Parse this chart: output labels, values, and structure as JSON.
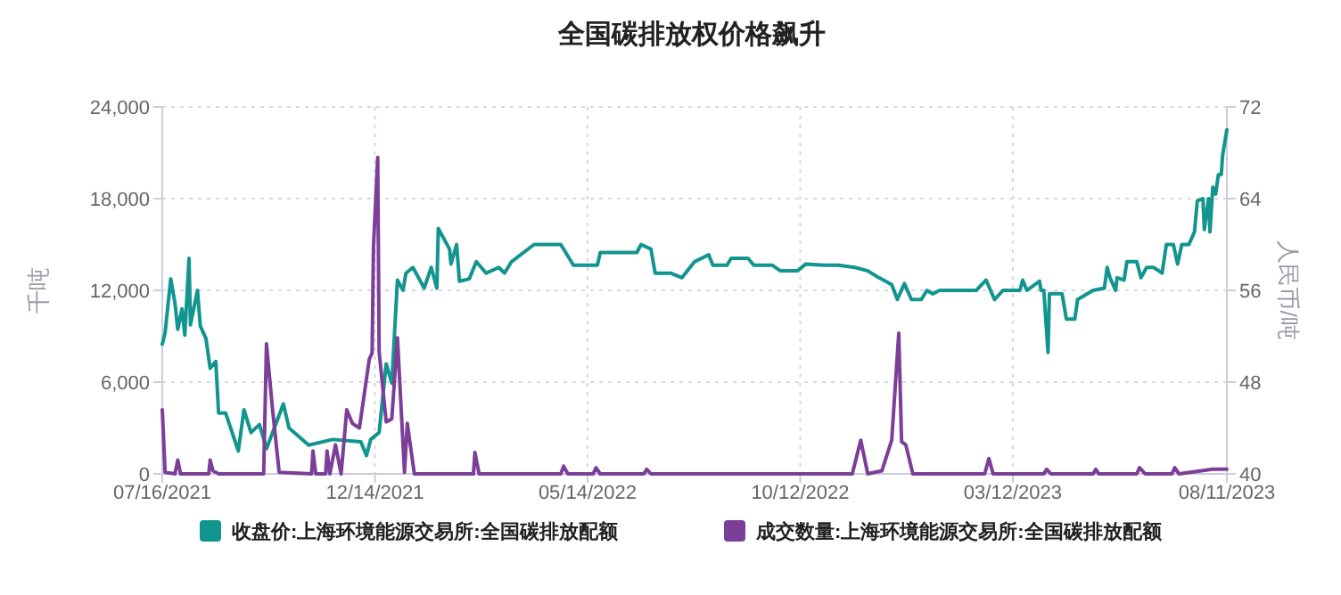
{
  "chart_data": {
    "type": "line",
    "title": "全国碳排放权价格飙升",
    "ylabel": "千吨",
    "y2label": "人民币/吨",
    "xlim": [
      "2021-07-16",
      "2023-08-11"
    ],
    "xticks": [
      {
        "value": "2021-07-16",
        "label": "07/16/2021"
      },
      {
        "value": "2021-12-14",
        "label": "12/14/2021"
      },
      {
        "value": "2022-05-14",
        "label": "05/14/2022"
      },
      {
        "value": "2022-10-12",
        "label": "10/12/2022"
      },
      {
        "value": "2023-03-12",
        "label": "03/12/2023"
      },
      {
        "value": "2023-08-11",
        "label": "08/11/2023"
      }
    ],
    "ylim": [
      0,
      24000
    ],
    "yticks": [
      0,
      {
        "value": 6000,
        "label": "6,000"
      },
      {
        "value": 12000,
        "label": "12,000"
      },
      {
        "value": 18000,
        "label": "18,000"
      },
      {
        "value": 24000,
        "label": "24,000"
      }
    ],
    "y2lim": [
      40,
      72
    ],
    "y2ticks": [
      40,
      48,
      56,
      64,
      72
    ],
    "grid": true,
    "legend": "bottom",
    "series": [
      {
        "name": "收盘价:上海环境能源交易所:全国碳排放配额",
        "color": "#12958f",
        "axis": "y2",
        "x": [
          "2021-07-16",
          "2021-07-18",
          "2021-07-22",
          "2021-07-25",
          "2021-07-27",
          "2021-07-30",
          "2021-08-01",
          "2021-08-04",
          "2021-08-05",
          "2021-08-10",
          "2021-08-12",
          "2021-08-16",
          "2021-08-19",
          "2021-08-23",
          "2021-08-25",
          "2021-08-30",
          "2021-09-08",
          "2021-09-12",
          "2021-09-17",
          "2021-09-23",
          "2021-09-28",
          "2021-10-10",
          "2021-10-14",
          "2021-10-28",
          "2021-11-14",
          "2021-12-04",
          "2021-12-08",
          "2021-12-11",
          "2021-12-17",
          "2021-12-22",
          "2021-12-26",
          "2021-12-30",
          "2022-01-03",
          "2022-01-05",
          "2022-01-10",
          "2022-01-18",
          "2022-01-23",
          "2022-01-27",
          "2022-01-28",
          "2022-02-05",
          "2022-02-06",
          "2022-02-10",
          "2022-02-12",
          "2022-02-19",
          "2022-02-24",
          "2022-03-03",
          "2022-03-12",
          "2022-03-16",
          "2022-03-21",
          "2022-04-06",
          "2022-04-25",
          "2022-05-04",
          "2022-05-21",
          "2022-05-23",
          "2022-06-18",
          "2022-06-21",
          "2022-06-28",
          "2022-07-01",
          "2022-07-12",
          "2022-07-20",
          "2022-07-29",
          "2022-08-08",
          "2022-08-11",
          "2022-08-21",
          "2022-08-24",
          "2022-09-05",
          "2022-09-09",
          "2022-09-22",
          "2022-09-28",
          "2022-10-10",
          "2022-10-16",
          "2022-10-29",
          "2022-11-08",
          "2022-11-20",
          "2022-11-29",
          "2022-12-07",
          "2022-12-16",
          "2022-12-20",
          "2022-12-25",
          "2022-12-30",
          "2023-01-06",
          "2023-01-10",
          "2023-01-14",
          "2023-01-19",
          "2023-02-14",
          "2023-02-21",
          "2023-02-27",
          "2023-03-05",
          "2023-03-17",
          "2023-03-19",
          "2023-03-22",
          "2023-03-31",
          "2023-04-01",
          "2023-04-03",
          "2023-04-06",
          "2023-04-07",
          "2023-04-16",
          "2023-04-19",
          "2023-04-25",
          "2023-04-27",
          "2023-05-08",
          "2023-05-16",
          "2023-05-18",
          "2023-05-20",
          "2023-05-24",
          "2023-05-25",
          "2023-05-30",
          "2023-06-01",
          "2023-06-08",
          "2023-06-11",
          "2023-06-15",
          "2023-06-20",
          "2023-06-26",
          "2023-06-29",
          "2023-07-04",
          "2023-07-07",
          "2023-07-10",
          "2023-07-15",
          "2023-07-19",
          "2023-07-21",
          "2023-07-25",
          "2023-07-26",
          "2023-07-29",
          "2023-07-30",
          "2023-08-01",
          "2023-08-03",
          "2023-08-05",
          "2023-08-07",
          "2023-08-08",
          "2023-08-11"
        ],
        "values": [
          51.3,
          52.3,
          57.0,
          54.9,
          52.6,
          54.4,
          52.1,
          58.8,
          53.0,
          56.0,
          52.9,
          51.8,
          49.2,
          49.8,
          45.3,
          45.3,
          42.0,
          45.6,
          43.6,
          44.3,
          42.2,
          46.1,
          44.0,
          42.5,
          43.0,
          42.8,
          41.6,
          43.0,
          43.6,
          49.6,
          47.9,
          56.9,
          56.0,
          57.5,
          58.0,
          56.2,
          58.0,
          56.2,
          61.4,
          59.6,
          58.3,
          60.0,
          56.8,
          57.0,
          58.5,
          57.5,
          58.0,
          57.5,
          58.5,
          60.0,
          60.0,
          58.2,
          58.2,
          59.3,
          59.3,
          60.0,
          59.6,
          57.5,
          57.5,
          57.1,
          58.5,
          59.1,
          58.2,
          58.2,
          58.8,
          58.8,
          58.2,
          58.2,
          57.7,
          57.7,
          58.3,
          58.2,
          58.2,
          58.0,
          57.7,
          57.1,
          56.5,
          55.2,
          56.6,
          55.2,
          55.2,
          56.0,
          55.7,
          56.0,
          56.0,
          56.9,
          55.2,
          56.0,
          56.0,
          56.9,
          56.0,
          56.8,
          56.0,
          56.0,
          50.6,
          55.7,
          55.7,
          53.5,
          53.5,
          55.2,
          56.0,
          56.2,
          58.0,
          57.1,
          56.0,
          57.1,
          56.9,
          58.5,
          58.5,
          57.1,
          58.0,
          58.0,
          57.5,
          60.0,
          60.0,
          58.3,
          60.0,
          60.0,
          61.1,
          63.8,
          64.0,
          61.3,
          64.0,
          61.1,
          65.0,
          64.4,
          66.1,
          66.1,
          67.8,
          70.0
        ]
      },
      {
        "name": "成交数量:上海环境能源交易所:全国碳排放配额",
        "color": "#7b3f98",
        "x": [
          "2021-07-16",
          "2021-07-18",
          "2021-07-25",
          "2021-07-27",
          "2021-07-29",
          "2021-08-18",
          "2021-08-19",
          "2021-08-21",
          "2021-08-25",
          "2021-09-26",
          "2021-09-28",
          "2021-10-02",
          "2021-10-07",
          "2021-10-30",
          "2021-10-31",
          "2021-11-02",
          "2021-11-09",
          "2021-11-10",
          "2021-11-12",
          "2021-11-16",
          "2021-11-20",
          "2021-11-24",
          "2021-11-28",
          "2021-12-03",
          "2021-12-10",
          "2021-12-12",
          "2021-12-13",
          "2021-12-16",
          "2021-12-17",
          "2021-12-22",
          "2021-12-26",
          "2021-12-30",
          "2022-01-04",
          "2022-01-06",
          "2022-01-11",
          "2022-02-22",
          "2022-02-23",
          "2022-02-26",
          "2022-04-25",
          "2022-04-27",
          "2022-04-30",
          "2022-05-18",
          "2022-05-20",
          "2022-05-23",
          "2022-06-23",
          "2022-06-25",
          "2022-06-28",
          "2022-11-18",
          "2022-11-24",
          "2022-11-29",
          "2022-12-09",
          "2022-12-16",
          "2022-12-21",
          "2022-12-23",
          "2022-12-26",
          "2022-12-31",
          "2023-02-20",
          "2023-02-23",
          "2023-02-26",
          "2023-04-03",
          "2023-04-05",
          "2023-04-08",
          "2023-05-08",
          "2023-05-10",
          "2023-05-12",
          "2023-06-08",
          "2023-06-10",
          "2023-06-14",
          "2023-07-03",
          "2023-07-05",
          "2023-07-08",
          "2023-08-01",
          "2023-08-11"
        ],
        "values": [
          4200,
          100,
          0,
          900,
          0,
          0,
          900,
          200,
          0,
          0,
          8500,
          4500,
          100,
          0,
          1500,
          0,
          0,
          1500,
          0,
          1900,
          0,
          4200,
          3300,
          3000,
          7500,
          7900,
          14900,
          20700,
          8000,
          3400,
          3600,
          8900,
          100,
          3300,
          0,
          0,
          1400,
          0,
          0,
          500,
          0,
          0,
          400,
          0,
          0,
          300,
          0,
          0,
          2200,
          0,
          200,
          2200,
          9200,
          2100,
          1900,
          0,
          0,
          1000,
          0,
          0,
          300,
          0,
          0,
          300,
          0,
          0,
          400,
          0,
          0,
          400,
          0,
          300,
          300
        ]
      }
    ]
  }
}
